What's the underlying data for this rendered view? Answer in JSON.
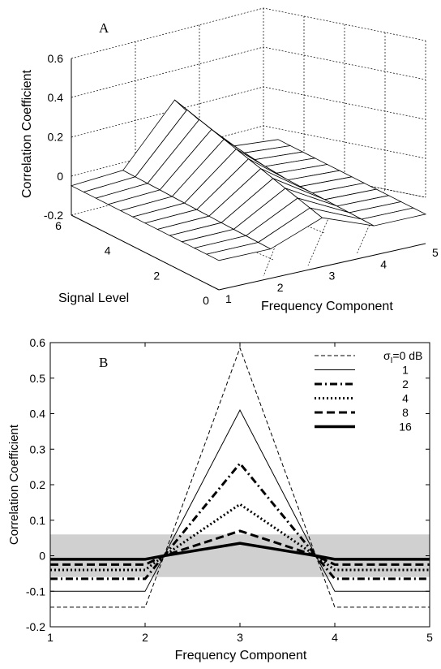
{
  "chart_data": [
    {
      "panel_label": "A",
      "type": "surface3d",
      "zlabel": "Correlation Coefficient",
      "xlabel": "Frequency Component",
      "ylabel": "Signal Level",
      "x_ticks": [
        "1",
        "2",
        "3",
        "4",
        "5"
      ],
      "y_ticks": [
        "0",
        "2",
        "4",
        "6"
      ],
      "z_ticks": [
        "-0.2",
        "0",
        "0.2",
        "0.4",
        "0.6"
      ],
      "x": [
        1,
        2,
        3,
        4,
        5
      ],
      "y_range": [
        0,
        6
      ],
      "zlim": [
        -0.2,
        0.6
      ],
      "grid": true,
      "surface_rows": [
        {
          "signal_level": 0,
          "values": [
            -0.05,
            -0.05,
            0.05,
            -0.05,
            -0.05
          ]
        },
        {
          "signal_level": 6,
          "values": [
            -0.05,
            -0.03,
            0.27,
            -0.03,
            -0.05
          ]
        }
      ]
    },
    {
      "panel_label": "B",
      "type": "line",
      "xlabel": "Frequency Component",
      "ylabel": "Correlation Coefficient",
      "x": [
        1,
        2,
        2.2,
        3,
        3.8,
        4,
        5
      ],
      "xlim": [
        1,
        5
      ],
      "ylim": [
        -0.2,
        0.6
      ],
      "x_ticks": [
        "1",
        "2",
        "3",
        "4",
        "5"
      ],
      "y_ticks": [
        "-0.2",
        "-0.1",
        "0",
        "0.1",
        "0.2",
        "0.3",
        "0.4",
        "0.5",
        "0.6"
      ],
      "legend_position": "top-right",
      "shaded_band": [
        -0.06,
        0.06
      ],
      "series": [
        {
          "name": "σ",
          "name_sub": "I",
          "name_suffix": "=0 dB",
          "style": "dashed-thin",
          "values": [
            -0.145,
            -0.145,
            0.0,
            0.585,
            0.0,
            -0.145,
            -0.145
          ]
        },
        {
          "name": "1",
          "style": "solid-thin",
          "values": [
            -0.1,
            -0.1,
            0.0,
            0.41,
            0.0,
            -0.1,
            -0.1
          ]
        },
        {
          "name": "2",
          "style": "dashdot-thick",
          "values": [
            -0.065,
            -0.065,
            0.0,
            0.26,
            0.0,
            -0.065,
            -0.065
          ]
        },
        {
          "name": "4",
          "style": "dotted-thick",
          "values": [
            -0.04,
            -0.04,
            0.0,
            0.145,
            0.0,
            -0.04,
            -0.04
          ]
        },
        {
          "name": "8",
          "style": "dashed-thick",
          "values": [
            -0.025,
            -0.025,
            0.0,
            0.07,
            0.0,
            -0.025,
            -0.025
          ]
        },
        {
          "name": "16",
          "style": "solid-thick",
          "values": [
            -0.01,
            -0.01,
            0.0,
            0.035,
            0.0,
            -0.01,
            -0.01
          ]
        }
      ]
    }
  ]
}
